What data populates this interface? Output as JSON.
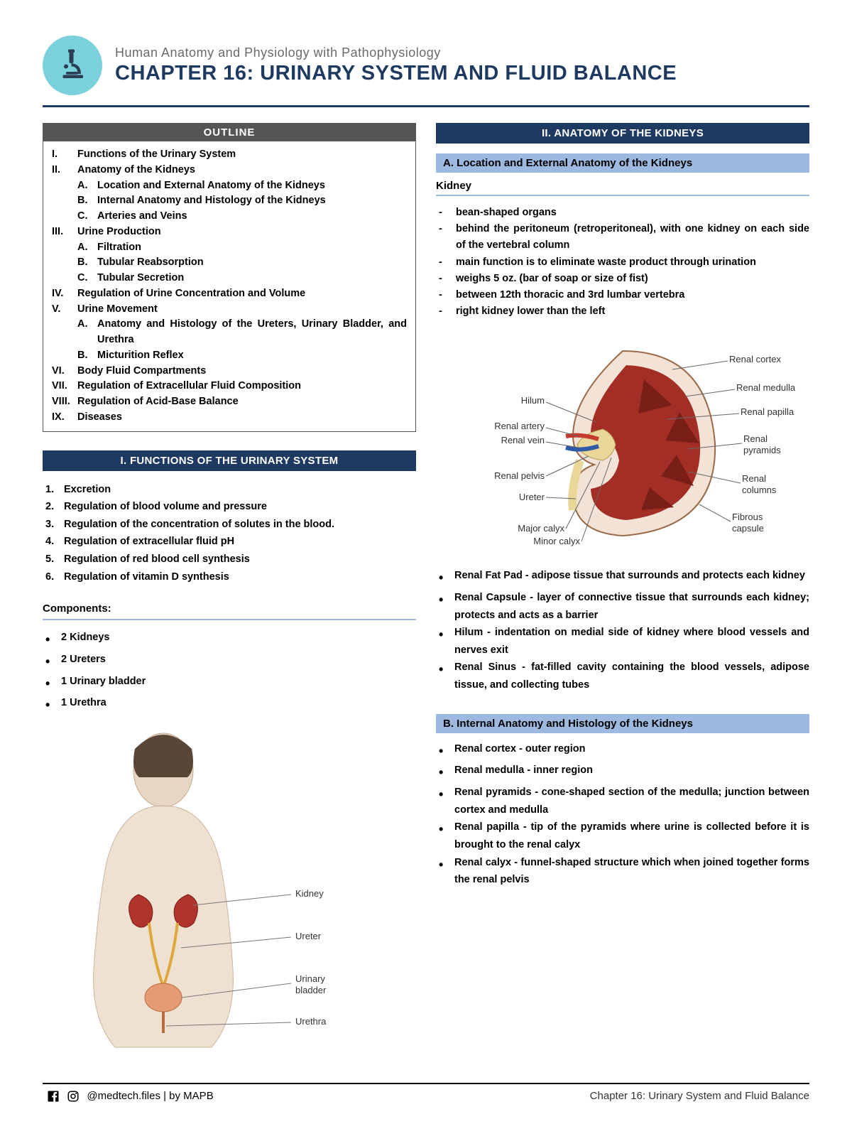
{
  "header": {
    "course": "Human Anatomy and Physiology with Pathophysiology",
    "chapter": "CHAPTER 16: URINARY SYSTEM AND FLUID BALANCE"
  },
  "colors": {
    "accent": "#1e3a61",
    "subbar": "#9db9e0",
    "icon_bg": "#7ad1dc",
    "outline_bg": "#555",
    "rule": "#9db9e0"
  },
  "outline": {
    "title": "OUTLINE",
    "items": [
      {
        "rn": "I.",
        "t": "Functions of the Urinary System"
      },
      {
        "rn": "II.",
        "t": "Anatomy of the Kidneys",
        "sub": [
          {
            "rn": "A.",
            "t": "Location and External Anatomy of the Kidneys"
          },
          {
            "rn": "B.",
            "t": "Internal Anatomy and Histology of the Kidneys"
          },
          {
            "rn": "C.",
            "t": "Arteries and Veins"
          }
        ]
      },
      {
        "rn": "III.",
        "t": "Urine Production",
        "sub": [
          {
            "rn": "A.",
            "t": "Filtration"
          },
          {
            "rn": "B.",
            "t": "Tubular Reabsorption"
          },
          {
            "rn": "C.",
            "t": "Tubular Secretion"
          }
        ]
      },
      {
        "rn": "IV.",
        "t": "Regulation of Urine Concentration and Volume"
      },
      {
        "rn": "V.",
        "t": "Urine Movement",
        "sub": [
          {
            "rn": "A.",
            "t": "Anatomy and Histology of the Ureters, Urinary Bladder, and Urethra"
          },
          {
            "rn": "B.",
            "t": "Micturition Reflex"
          }
        ]
      },
      {
        "rn": "VI.",
        "t": "Body Fluid Compartments"
      },
      {
        "rn": "VII.",
        "t": "Regulation of Extracellular Fluid Composition"
      },
      {
        "rn": "VIII.",
        "t": "Regulation of Acid-Base Balance"
      },
      {
        "rn": "IX.",
        "t": "Diseases"
      }
    ]
  },
  "section1": {
    "title": "I. FUNCTIONS OF THE URINARY SYSTEM",
    "functions": [
      {
        "n": "1.",
        "t": "Excretion"
      },
      {
        "n": "2.",
        "t": "Regulation of blood volume and pressure"
      },
      {
        "n": "3.",
        "t": "Regulation of the concentration of solutes in the blood."
      },
      {
        "n": "4.",
        "t": "Regulation of extracellular fluid pH"
      },
      {
        "n": "5.",
        "t": "Regulation of red blood cell synthesis"
      },
      {
        "n": "6.",
        "t": "Regulation of vitamin D synthesis"
      }
    ],
    "components_title": "Components:",
    "components": [
      "2 Kidneys",
      "2 Ureters",
      "1 Urinary bladder",
      "1 Urethra"
    ],
    "body_labels": [
      "Kidney",
      "Ureter",
      "Urinary bladder",
      "Urethra"
    ]
  },
  "section2": {
    "title": "II. ANATOMY OF THE KIDNEYS",
    "subA": {
      "title": "A. Location and External Anatomy of the Kidneys",
      "heading": "Kidney",
      "dash": [
        "bean-shaped organs",
        "behind the peritoneum (retroperitoneal), with one kidney on each side of the vertebral column",
        "main function is to eliminate waste product through urination",
        "weighs 5 oz. (bar of soap or size of fist)",
        "between 12th thoracic and 3rd lumbar vertebra",
        "right kidney lower than the left"
      ],
      "kidney_labels_left": [
        "Hilum",
        "Renal artery",
        "Renal vein",
        "Renal pelvis",
        "Ureter",
        "Major calyx",
        "Minor calyx"
      ],
      "kidney_labels_right": [
        "Renal cortex",
        "Renal medulla",
        "Renal papilla",
        "Renal pyramids",
        "Renal columns",
        "Fibrous capsule"
      ],
      "bullets": [
        "Renal Fat Pad - adipose tissue that surrounds and protects each kidney",
        "Renal Capsule - layer of connective tissue that surrounds each kidney; protects and acts as a barrier",
        "Hilum - indentation on medial side of kidney where blood vessels and nerves exit",
        "Renal Sinus - fat-filled cavity containing the blood vessels, adipose tissue, and collecting tubes"
      ]
    },
    "subB": {
      "title": "B. Internal Anatomy and Histology of the Kidneys",
      "bullets": [
        "Renal cortex - outer region",
        "Renal medulla - inner region",
        "Renal pyramids - cone-shaped section of the medulla; junction between cortex and medulla",
        "Renal papilla - tip of the pyramids where urine is collected before it is brought to the renal calyx",
        "Renal calyx - funnel-shaped structure which when joined together forms the renal pelvis"
      ]
    }
  },
  "footer": {
    "handle": "@medtech.files  |  by MAPB",
    "right": "Chapter 16: Urinary System and Fluid Balance"
  }
}
